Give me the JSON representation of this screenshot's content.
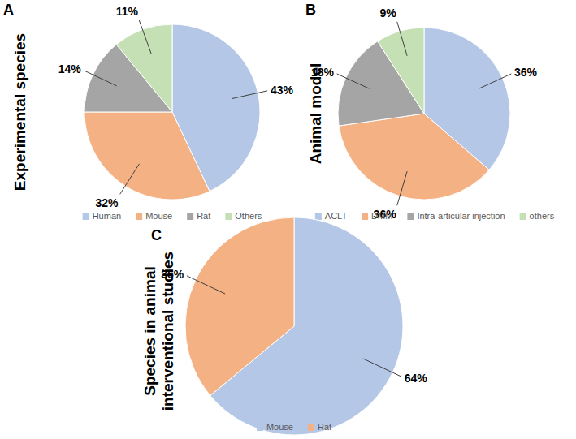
{
  "chart_data": [
    {
      "type": "pie",
      "panel": "A",
      "title": "Experimental species",
      "categories": [
        "Human",
        "Mouse",
        "Rat",
        "Others"
      ],
      "values": [
        43,
        32,
        14,
        11
      ],
      "value_labels": [
        "43%",
        "32%",
        "14%",
        "11%"
      ],
      "colors": [
        "#b4c7e7",
        "#f4b183",
        "#a5a5a5",
        "#c5e0b4"
      ],
      "data_labels": true,
      "legend": "bottom"
    },
    {
      "type": "pie",
      "panel": "B",
      "title": "Animal model",
      "categories": [
        "ACLT",
        "DMM",
        "Intra-articular injection",
        "others"
      ],
      "values": [
        36,
        36,
        18,
        9
      ],
      "value_labels": [
        "36%",
        "36%",
        "18%",
        "9%"
      ],
      "colors": [
        "#b4c7e7",
        "#f4b183",
        "#a5a5a5",
        "#c5e0b4"
      ],
      "data_labels": true,
      "legend": "bottom"
    },
    {
      "type": "pie",
      "panel": "C",
      "title": "Species in animal interventional studies",
      "categories": [
        "Mouse",
        "Rat"
      ],
      "values": [
        64,
        36
      ],
      "value_labels": [
        "64%",
        "36%"
      ],
      "colors": [
        "#b4c7e7",
        "#f4b183"
      ],
      "data_labels": true,
      "legend": "bottom"
    }
  ]
}
